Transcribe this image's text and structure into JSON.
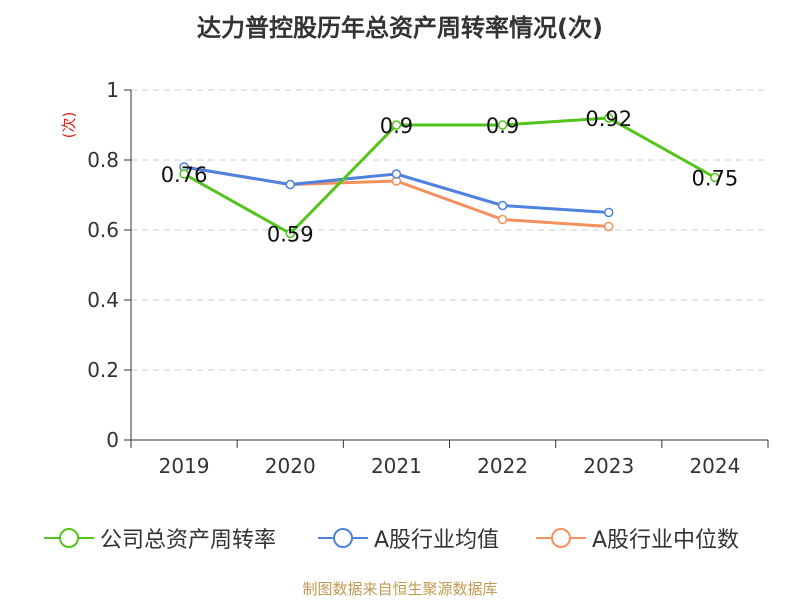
{
  "chart_data": {
    "type": "line",
    "title": "达力普控股历年总资产周转率情况(次)",
    "ylabel": "(次)",
    "xlabel": "",
    "categories": [
      "2019",
      "2020",
      "2021",
      "2022",
      "2023",
      "2024"
    ],
    "ylim": [
      0,
      1
    ],
    "yticks": [
      "0",
      "0.2",
      "0.4",
      "0.6",
      "0.8",
      "1"
    ],
    "grid": true,
    "legend_position": "bottom",
    "series": [
      {
        "name": "公司总资产周转率",
        "color": "#52c41a",
        "values": [
          0.76,
          0.59,
          0.9,
          0.9,
          0.92,
          0.75
        ],
        "show_labels": true
      },
      {
        "name": "A股行业均值",
        "color": "#4f81de",
        "values": [
          0.78,
          0.73,
          0.76,
          0.67,
          0.65,
          null
        ],
        "show_labels": false
      },
      {
        "name": "A股行业中位数",
        "color": "#f4905e",
        "values": [
          0.78,
          0.73,
          0.74,
          0.63,
          0.61,
          null
        ],
        "show_labels": false
      }
    ]
  },
  "footer": {
    "source": "制图数据来自恒生聚源数据库"
  }
}
